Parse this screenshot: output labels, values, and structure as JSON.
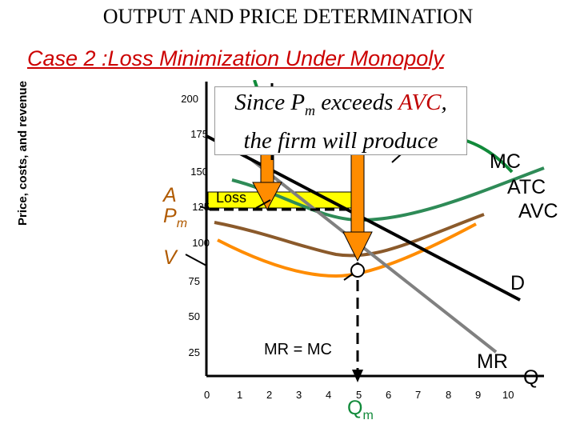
{
  "title": "OUTPUT AND PRICE DETERMINATION",
  "subtitle": "Case 2 :Loss Minimization Under Monopoly",
  "ylabel": "Price, costs, and revenue",
  "y_ticks": [
    "200",
    "175",
    "150",
    "125",
    "100",
    "75",
    "50",
    "25"
  ],
  "x_ticks": [
    "0",
    "1",
    "2",
    "3",
    "4",
    "5",
    "6",
    "7",
    "8",
    "9",
    "10"
  ],
  "x_axis_label": "Q",
  "callout": {
    "part1": "Since P",
    "sub": "m",
    "part2": " exceeds ",
    "avc": "AVC",
    "part3": ",",
    "line2": "the firm will produce"
  },
  "labels": {
    "a": "A",
    "pm_p": "P",
    "pm_sub": "m",
    "v": "V",
    "loss": "Loss",
    "mc": "MC",
    "atc": "ATC",
    "avc": "AVC",
    "d": "D",
    "mr": "MR",
    "mr_eq_mc": "MR = MC",
    "qm_q": "Q",
    "qm_sub": "m"
  },
  "colors": {
    "subtitle": "#cc0000",
    "mc": "#118a3a",
    "atc": "#ff8c00",
    "avc": "#8b5a2b",
    "demand": "#000000",
    "mr": "#808080",
    "loss_fill": "#ffff00",
    "arrow_fill": "#ff8c00",
    "qm": "#118a3a"
  },
  "chart_data": {
    "type": "line",
    "xlim": [
      0,
      10
    ],
    "ylim": [
      0,
      200
    ],
    "x_ticks": [
      0,
      1,
      2,
      3,
      4,
      5,
      6,
      7,
      8,
      9,
      10
    ],
    "y_ticks": [
      25,
      50,
      75,
      100,
      125,
      150,
      175,
      200
    ],
    "series": [
      {
        "name": "D",
        "points": [
          [
            0,
            185
          ],
          [
            5,
            125
          ],
          [
            10,
            72
          ]
        ]
      },
      {
        "name": "MR",
        "points": [
          [
            1.3,
            135
          ],
          [
            5,
            83
          ],
          [
            8.8,
            30
          ]
        ]
      },
      {
        "name": "MC",
        "points": [
          [
            1.6,
            240
          ],
          [
            2.5,
            190
          ],
          [
            4,
            172
          ],
          [
            6.5,
            168
          ],
          [
            9,
            150
          ],
          [
            10,
            162
          ]
        ]
      },
      {
        "name": "ATC",
        "points": [
          [
            0.8,
            150
          ],
          [
            2.5,
            120
          ],
          [
            4.5,
            105
          ],
          [
            5.8,
            96
          ],
          [
            7.5,
            107
          ],
          [
            9.5,
            128
          ]
        ]
      },
      {
        "name": "AVC",
        "points": [
          [
            0.6,
            110
          ],
          [
            2.3,
            98
          ],
          [
            3.5,
            86
          ],
          [
            4.9,
            78
          ],
          [
            6.5,
            85
          ],
          [
            9.5,
            120
          ]
        ]
      }
    ],
    "annotations": {
      "Pm": 125,
      "ATC_at_Qm": 134,
      "AVC_at_Qm": 83,
      "Qm": 5
    }
  }
}
